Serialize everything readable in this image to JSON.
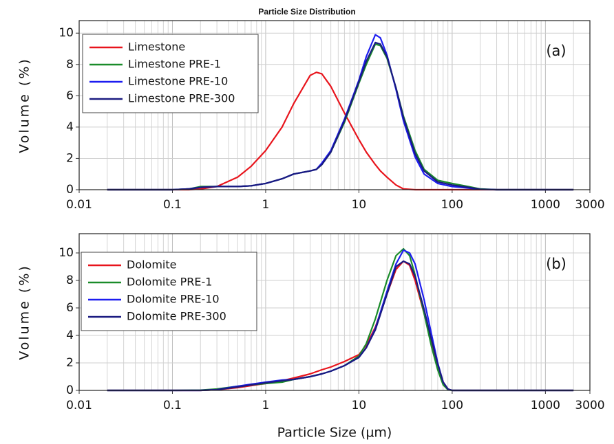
{
  "chart_data": [
    {
      "type": "line",
      "title": "Particle Size Distribution",
      "y_label": "Volume (%)",
      "annotation": "(a)",
      "log_x": true,
      "grid": true,
      "legend": "upper left",
      "xlim": [
        0.01,
        3000
      ],
      "ylim": [
        0,
        10.8
      ],
      "xticks": [
        0.01,
        0.1,
        1,
        10,
        100,
        1000,
        3000
      ],
      "yticks": [
        0,
        2,
        4,
        6,
        8,
        10
      ],
      "x": [
        0.02,
        0.05,
        0.1,
        0.15,
        0.2,
        0.3,
        0.5,
        0.7,
        1,
        1.5,
        2,
        3,
        3.5,
        4,
        5,
        7,
        10,
        12,
        15,
        17,
        20,
        25,
        30,
        40,
        50,
        70,
        100,
        150,
        200,
        300,
        500,
        1000,
        2000
      ],
      "series": [
        {
          "name": "Limestone",
          "color": "#e8141c",
          "values": [
            0,
            0,
            0,
            0,
            0.05,
            0.2,
            0.8,
            1.5,
            2.5,
            4.0,
            5.5,
            7.3,
            7.5,
            7.4,
            6.6,
            4.9,
            3.2,
            2.4,
            1.6,
            1.2,
            0.8,
            0.3,
            0.05,
            0,
            0,
            0,
            0,
            0,
            0,
            0,
            0,
            0,
            0
          ]
        },
        {
          "name": "Limestone PRE-1",
          "color": "#1a8c2a",
          "values": [
            0,
            0,
            0,
            0.05,
            0.2,
            0.2,
            0.2,
            0.25,
            0.4,
            0.7,
            1.0,
            1.2,
            1.3,
            1.6,
            2.4,
            4.3,
            6.8,
            8.0,
            9.3,
            9.2,
            8.4,
            6.5,
            4.7,
            2.5,
            1.3,
            0.6,
            0.4,
            0.2,
            0.05,
            0,
            0,
            0,
            0
          ]
        },
        {
          "name": "Limestone PRE-10",
          "color": "#1c1cf0",
          "values": [
            0,
            0,
            0,
            0.05,
            0.15,
            0.2,
            0.2,
            0.25,
            0.4,
            0.7,
            1.0,
            1.2,
            1.3,
            1.7,
            2.5,
            4.5,
            7.0,
            8.5,
            9.9,
            9.7,
            8.6,
            6.4,
            4.4,
            2.1,
            1.0,
            0.4,
            0.2,
            0.1,
            0.02,
            0,
            0,
            0,
            0
          ]
        },
        {
          "name": "Limestone PRE-300",
          "color": "#1a1a80",
          "values": [
            0,
            0,
            0,
            0.05,
            0.15,
            0.2,
            0.2,
            0.25,
            0.4,
            0.7,
            1.0,
            1.2,
            1.3,
            1.6,
            2.4,
            4.4,
            6.9,
            8.2,
            9.4,
            9.3,
            8.5,
            6.5,
            4.6,
            2.3,
            1.2,
            0.5,
            0.3,
            0.15,
            0.03,
            0,
            0,
            0,
            0
          ]
        }
      ]
    },
    {
      "type": "line",
      "x_label": "Particle Size (µm)",
      "y_label": "Volume (%)",
      "annotation": "(b)",
      "log_x": true,
      "grid": true,
      "legend": "upper left",
      "xlim": [
        0.01,
        3000
      ],
      "ylim": [
        0,
        11.4
      ],
      "xticks": [
        0.01,
        0.1,
        1,
        10,
        100,
        1000,
        3000
      ],
      "yticks": [
        0,
        2,
        4,
        6,
        8,
        10
      ],
      "x": [
        0.02,
        0.05,
        0.1,
        0.2,
        0.3,
        0.5,
        0.7,
        1,
        1.5,
        2,
        3,
        4,
        5,
        7,
        10,
        12,
        15,
        20,
        25,
        30,
        35,
        40,
        50,
        60,
        70,
        80,
        90,
        100,
        200,
        500,
        1000,
        2000
      ],
      "series": [
        {
          "name": "Dolomite",
          "color": "#e8141c",
          "values": [
            0,
            0,
            0,
            0,
            0.05,
            0.2,
            0.35,
            0.5,
            0.7,
            0.9,
            1.2,
            1.5,
            1.7,
            2.1,
            2.6,
            3.3,
            4.6,
            7.0,
            8.8,
            9.4,
            9.1,
            8.0,
            5.6,
            3.5,
            1.9,
            0.6,
            0.1,
            0,
            0,
            0,
            0,
            0
          ]
        },
        {
          "name": "Dolomite PRE-1",
          "color": "#1a8c2a",
          "values": [
            0,
            0,
            0,
            0.02,
            0.1,
            0.3,
            0.4,
            0.5,
            0.6,
            0.8,
            1.0,
            1.2,
            1.4,
            1.8,
            2.5,
            3.4,
            5.2,
            8.0,
            9.8,
            10.3,
            9.8,
            8.4,
            5.6,
            3.2,
            1.5,
            0.4,
            0.05,
            0,
            0,
            0,
            0,
            0
          ]
        },
        {
          "name": "Dolomite PRE-10",
          "color": "#1c1cf0",
          "values": [
            0,
            0,
            0,
            0,
            0.05,
            0.3,
            0.45,
            0.6,
            0.75,
            0.8,
            1.0,
            1.2,
            1.4,
            1.8,
            2.4,
            3.1,
            4.5,
            7.2,
            9.2,
            10.2,
            10.0,
            9.2,
            6.6,
            4.1,
            2.0,
            0.6,
            0.1,
            0,
            0,
            0,
            0,
            0
          ]
        },
        {
          "name": "Dolomite PRE-300",
          "color": "#1a1a80",
          "values": [
            0,
            0,
            0,
            0,
            0.05,
            0.25,
            0.4,
            0.55,
            0.7,
            0.8,
            1.0,
            1.2,
            1.4,
            1.8,
            2.4,
            3.1,
            4.4,
            7.0,
            9.0,
            9.4,
            9.2,
            8.3,
            5.9,
            3.7,
            1.9,
            0.6,
            0.1,
            0,
            0,
            0,
            0,
            0
          ]
        }
      ]
    }
  ]
}
